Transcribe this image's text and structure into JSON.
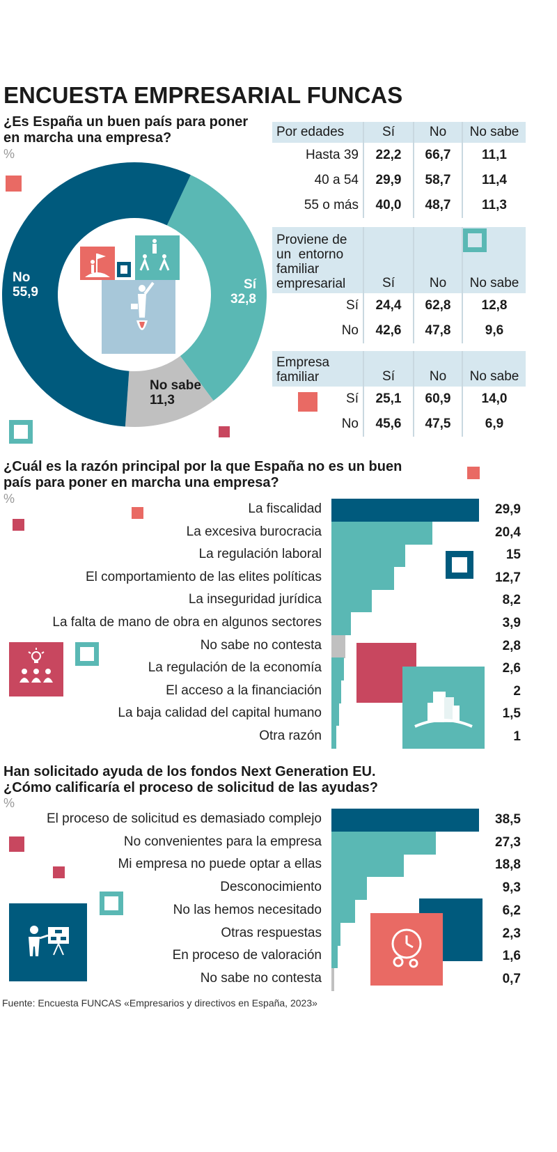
{
  "title": "ENCUESTA EMPRESARIAL FUNCAS",
  "source": "Fuente: Encuesta FUNCAS «Empresarios y directivos en España, 2023»",
  "colors": {
    "dark_blue": "#005a7d",
    "teal": "#5ab8b4",
    "gray": "#c0c0c0",
    "red": "#e96a64",
    "crimson": "#c8475f",
    "header_bg": "#d6e7ef"
  },
  "chart_data": [
    {
      "type": "pie",
      "title": "¿Es España un buen país para poner en marcha una empresa?",
      "unit": "%",
      "categories": [
        "No",
        "Sí",
        "No sabe"
      ],
      "values": [
        55.9,
        32.8,
        11.3
      ],
      "labels_text": [
        "55,9",
        "32,8",
        "11,3"
      ],
      "colors": [
        "#005a7d",
        "#5ab8b4",
        "#c0c0c0"
      ]
    },
    {
      "type": "table",
      "title": "Por edades",
      "columns": [
        "Sí",
        "No",
        "No sabe"
      ],
      "rows": [
        {
          "label": "Hasta 39",
          "values": [
            "22,2",
            "66,7",
            "11,1"
          ]
        },
        {
          "label": "40 a 54",
          "values": [
            "29,9",
            "58,7",
            "11,4"
          ]
        },
        {
          "label": "55 o más",
          "values": [
            "40,0",
            "48,7",
            "11,3"
          ]
        }
      ]
    },
    {
      "type": "table",
      "title": "Proviene de un entorno familiar empresarial",
      "title_lines": [
        "Proviene de",
        "un  entorno",
        "familiar",
        "empresarial"
      ],
      "columns": [
        "Sí",
        "No",
        "No sabe"
      ],
      "rows": [
        {
          "label": "Sí",
          "values": [
            "24,4",
            "62,8",
            "12,8"
          ]
        },
        {
          "label": "No",
          "values": [
            "42,6",
            "47,8",
            "9,6"
          ]
        }
      ]
    },
    {
      "type": "table",
      "title": "Empresa familiar",
      "title_lines": [
        "Empresa",
        "familiar"
      ],
      "columns": [
        "Sí",
        "No",
        "No sabe"
      ],
      "rows": [
        {
          "label": "Sí",
          "values": [
            "25,1",
            "60,9",
            "14,0"
          ]
        },
        {
          "label": "No",
          "values": [
            "45,6",
            "47,5",
            "6,9"
          ]
        }
      ]
    },
    {
      "type": "bar",
      "orientation": "horizontal",
      "title": "¿Cuál es la razón principal por la que España no es un buen país para poner en marcha una empresa?",
      "title_lines": [
        "¿Cuál es la razón principal por la que España no es un buen",
        "país para poner en marcha una empresa?"
      ],
      "unit": "%",
      "categories": [
        "La fiscalidad",
        "La excesiva burocracia",
        "La regulación laboral",
        "El comportamiento de las elites políticas",
        "La inseguridad jurídica",
        "La falta de mano de obra en algunos sectores",
        "No sabe no contesta",
        "La regulación de la economía",
        "El acceso a la financiación",
        "La baja calidad del capital humano",
        "Otra razón"
      ],
      "values": [
        29.9,
        20.4,
        15,
        12.7,
        8.2,
        3.9,
        2.8,
        2.6,
        2,
        1.5,
        1
      ],
      "labels_text": [
        "29,9",
        "20,4",
        "15",
        "12,7",
        "8,2",
        "3,9",
        "2,8",
        "2,6",
        "2",
        "1,5",
        "1"
      ],
      "xlim": [
        0,
        29.9
      ]
    },
    {
      "type": "bar",
      "orientation": "horizontal",
      "title": "Han solicitado ayuda de los fondos Next Generation EU. ¿Cómo calificaría el proceso de solicitud de las ayudas?",
      "title_lines": [
        "Han solicitado ayuda de los fondos Next Generation EU.",
        "¿Cómo calificaría el proceso de solicitud de las ayudas?"
      ],
      "unit": "%",
      "categories": [
        "El proceso de solicitud es demasiado complejo",
        "No convenientes para la empresa",
        "Mi empresa no puede optar a ellas",
        "Desconocimiento",
        "No las hemos necesitado",
        "Otras respuestas",
        "En proceso de valoración",
        "No sabe no contesta"
      ],
      "values": [
        38.5,
        27.3,
        18.8,
        9.3,
        6.2,
        2.3,
        1.6,
        0.7
      ],
      "labels_text": [
        "38,5",
        "27,3",
        "18,8",
        "9,3",
        "6,2",
        "2,3",
        "1,6",
        "0,7"
      ],
      "xlim": [
        0,
        38.5
      ]
    }
  ]
}
